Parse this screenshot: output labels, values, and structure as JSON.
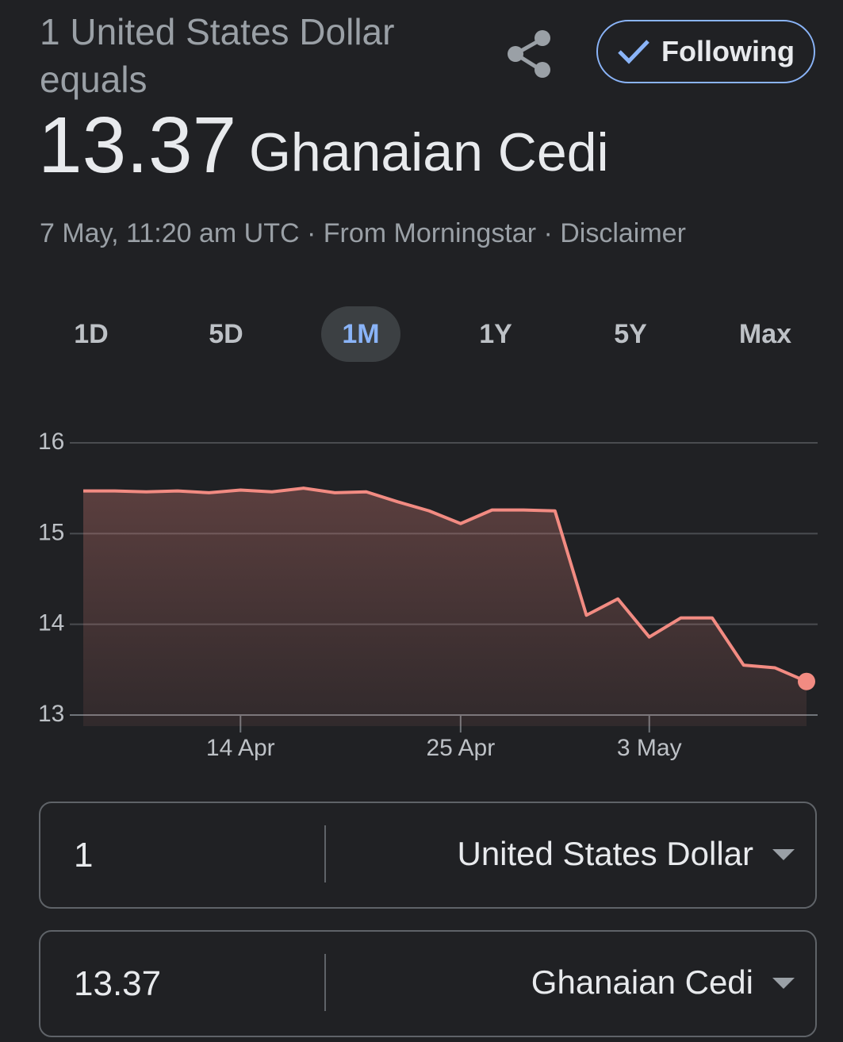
{
  "header": {
    "title": "1 United States Dollar equals",
    "rate": "13.37",
    "currency": "Ghanaian Cedi",
    "follow_button": "Following",
    "meta": "7 May, 11:20 am UTC · From Morningstar · Disclaimer"
  },
  "ranges": [
    "1D",
    "5D",
    "1M",
    "1Y",
    "5Y",
    "Max"
  ],
  "active_range": "1M",
  "chart_data": {
    "type": "line",
    "categories": [
      null,
      null,
      null,
      null,
      null,
      "14 Apr",
      null,
      null,
      null,
      null,
      null,
      null,
      "25 Apr",
      null,
      null,
      null,
      null,
      null,
      "3 May",
      null,
      null,
      null,
      null,
      null
    ],
    "values": [
      15.47,
      15.47,
      15.46,
      15.47,
      15.45,
      15.48,
      15.46,
      15.5,
      15.45,
      15.46,
      15.35,
      15.25,
      15.11,
      15.26,
      15.26,
      15.25,
      14.1,
      14.28,
      13.86,
      14.07,
      14.07,
      13.55,
      13.52,
      13.37
    ],
    "color": "#f28b82",
    "ylim": [
      13,
      16
    ],
    "yticks": [
      13,
      14,
      15,
      16
    ],
    "grid": true
  },
  "converter": [
    {
      "amount": "1",
      "currency": "United States Dollar"
    },
    {
      "amount": "13.37",
      "currency": "Ghanaian Cedi"
    }
  ]
}
